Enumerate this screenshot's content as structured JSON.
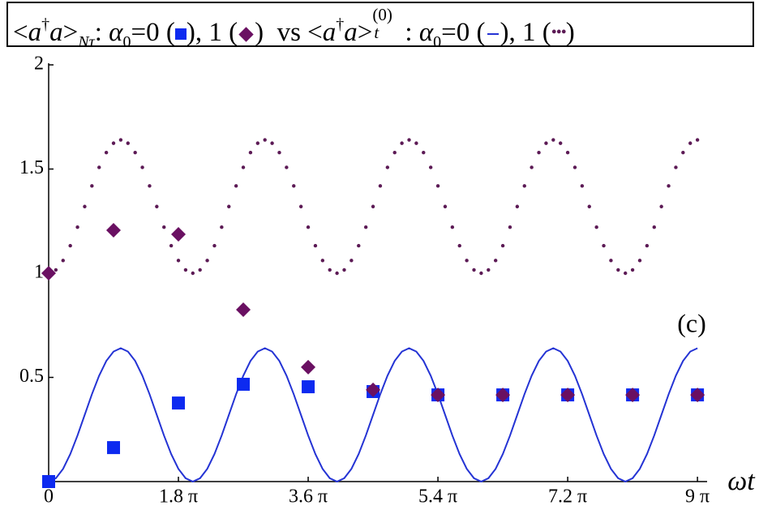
{
  "chart_data": {
    "type": "line",
    "title_parts": [
      "<",
      "a",
      "†",
      "a",
      ">",
      "Nτ",
      ": ",
      "α",
      "0",
      "=0 (",
      "), 1 (",
      ")  vs <",
      "a",
      "†",
      "a",
      ">",
      "t",
      "(0)",
      ": ",
      "α",
      "0",
      "=0 (",
      "), 1 (",
      ")"
    ],
    "annotation": "(c)",
    "x_label": "ωt",
    "xlim": [
      0,
      9.1
    ],
    "xticks": [
      0,
      {
        "value": 1.8,
        "label": "1.8 π"
      },
      {
        "value": 3.6,
        "label": "3.6 π"
      },
      {
        "value": 5.4,
        "label": "5.4 π"
      },
      {
        "value": 7.2,
        "label": "7.2 π"
      },
      {
        "value": 9,
        "label": "9 π"
      }
    ],
    "ylim": [
      0,
      2
    ],
    "yticks": [
      0.5,
      1,
      1.5,
      2
    ],
    "x": [
      0,
      0.1,
      0.2,
      0.3,
      0.4,
      0.5,
      0.6,
      0.7,
      0.8,
      0.9,
      1,
      1.1,
      1.2,
      1.3,
      1.4,
      1.5,
      1.6,
      1.7,
      1.8,
      1.9,
      2,
      2.1,
      2.2,
      2.3,
      2.4,
      2.5,
      2.6,
      2.7,
      2.8,
      2.9,
      3,
      3.1,
      3.2,
      3.3,
      3.4,
      3.5,
      3.6,
      3.7,
      3.8,
      3.9,
      4,
      4.1,
      4.2,
      4.3,
      4.4,
      4.5,
      4.6,
      4.7,
      4.8,
      4.9,
      5,
      5.1,
      5.2,
      5.3,
      5.4,
      5.5,
      5.6,
      5.7,
      5.8,
      5.9,
      6,
      6.1,
      6.2,
      6.3,
      6.4,
      6.5,
      6.6,
      6.7,
      6.8,
      6.9,
      7,
      7.1,
      7.2,
      7.3,
      7.4,
      7.5,
      7.6,
      7.7,
      7.8,
      7.9,
      8,
      8.1,
      8.2,
      8.3,
      8.4,
      8.5,
      8.6,
      8.7,
      8.8,
      8.9,
      9
    ],
    "series": [
      {
        "style": "line",
        "color": "#2433d4",
        "values": [
          0,
          0.016,
          0.061,
          0.132,
          0.221,
          0.32,
          0.419,
          0.508,
          0.579,
          0.624,
          0.64,
          0.624,
          0.579,
          0.508,
          0.419,
          0.32,
          0.221,
          0.132,
          0.061,
          0.016,
          0,
          0.016,
          0.061,
          0.132,
          0.221,
          0.32,
          0.419,
          0.508,
          0.579,
          0.624,
          0.64,
          0.624,
          0.579,
          0.508,
          0.419,
          0.32,
          0.221,
          0.132,
          0.061,
          0.016,
          0,
          0.016,
          0.061,
          0.132,
          0.221,
          0.32,
          0.419,
          0.508,
          0.579,
          0.624,
          0.64,
          0.624,
          0.579,
          0.508,
          0.419,
          0.32,
          0.221,
          0.132,
          0.061,
          0.016,
          0,
          0.016,
          0.061,
          0.132,
          0.221,
          0.32,
          0.419,
          0.508,
          0.579,
          0.624,
          0.64,
          0.624,
          0.579,
          0.508,
          0.419,
          0.32,
          0.221,
          0.132,
          0.061,
          0.016,
          0,
          0.016,
          0.061,
          0.132,
          0.221,
          0.32,
          0.419,
          0.508,
          0.579,
          0.624,
          0.64
        ]
      },
      {
        "style": "dots",
        "color": "#5c1a55",
        "values": [
          1,
          1.016,
          1.061,
          1.132,
          1.221,
          1.32,
          1.419,
          1.508,
          1.579,
          1.624,
          1.64,
          1.624,
          1.579,
          1.508,
          1.419,
          1.32,
          1.221,
          1.132,
          1.061,
          1.016,
          1,
          1.016,
          1.061,
          1.132,
          1.221,
          1.32,
          1.419,
          1.508,
          1.579,
          1.624,
          1.64,
          1.624,
          1.579,
          1.508,
          1.419,
          1.32,
          1.221,
          1.132,
          1.061,
          1.016,
          1,
          1.016,
          1.061,
          1.132,
          1.221,
          1.32,
          1.419,
          1.508,
          1.579,
          1.624,
          1.64,
          1.624,
          1.579,
          1.508,
          1.419,
          1.32,
          1.221,
          1.132,
          1.061,
          1.016,
          1,
          1.016,
          1.061,
          1.132,
          1.221,
          1.32,
          1.419,
          1.508,
          1.579,
          1.624,
          1.64,
          1.624,
          1.579,
          1.508,
          1.419,
          1.32,
          1.221,
          1.132,
          1.061,
          1.016,
          1,
          1.016,
          1.061,
          1.132,
          1.221,
          1.32,
          1.419,
          1.508,
          1.579,
          1.624,
          1.64
        ]
      }
    ],
    "markers": {
      "x": [
        0,
        0.9,
        1.8,
        2.7,
        3.6,
        4.5,
        5.4,
        6.3,
        7.2,
        8.1,
        9
      ],
      "series": [
        {
          "marker": "square",
          "color": "#0d2af0",
          "values": [
            0,
            0.163,
            0.377,
            0.467,
            0.455,
            0.432,
            0.416,
            0.416,
            0.416,
            0.416,
            0.416
          ]
        },
        {
          "marker": "diamond",
          "color": "#6a1062",
          "values": [
            1,
            1.206,
            1.187,
            0.825,
            0.549,
            0.44,
            0.416,
            0.416,
            0.416,
            0.416,
            0.416
          ]
        }
      ]
    }
  }
}
